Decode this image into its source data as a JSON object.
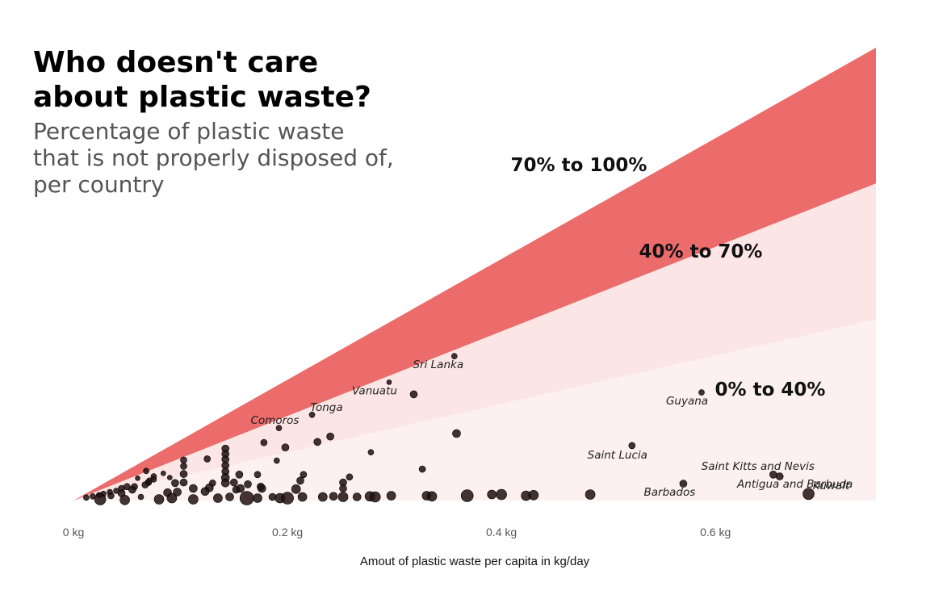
{
  "header": {
    "title_line1": "Who doesn't care",
    "title_line2": "about plastic waste?",
    "subtitle_line1": "Percentage of plastic waste",
    "subtitle_line2": "that is not properly disposed of,",
    "subtitle_line3": "per country"
  },
  "chart_data": {
    "type": "scatter",
    "xlabel": "Amout of plastic waste per capita in kg/day",
    "ylabel": "",
    "x_ticks": [
      0,
      0.2,
      0.4,
      0.6
    ],
    "x_tick_labels": [
      "0 kg",
      "0.2 kg",
      "0.4 kg",
      "0.6 kg"
    ],
    "xlim": [
      0,
      0.75
    ],
    "ylim": [
      0,
      0.75
    ],
    "grid": false,
    "bands": [
      {
        "label": "70% to 100%",
        "from": 0.7,
        "to": 1.0,
        "color": "#ec6b6b"
      },
      {
        "label": "40% to 70%",
        "from": 0.4,
        "to": 0.7,
        "color": "#fce5e5"
      },
      {
        "label": "0% to 40%",
        "from": 0.0,
        "to": 0.4,
        "color": "#fcf0f0"
      }
    ],
    "labeled_points": [
      {
        "name": "Sri Lanka",
        "x": 0.356,
        "y": 0.239,
        "size": 3.5
      },
      {
        "name": "Vanuatu",
        "x": 0.295,
        "y": 0.196,
        "size": 3
      },
      {
        "name": "Tonga",
        "x": 0.223,
        "y": 0.142,
        "size": 3.5
      },
      {
        "name": "Comoros",
        "x": 0.192,
        "y": 0.12,
        "size": 3.5
      },
      {
        "name": "Guyana",
        "x": 0.587,
        "y": 0.179,
        "size": 3.5
      },
      {
        "name": "Saint Lucia",
        "x": 0.522,
        "y": 0.091,
        "size": 4
      },
      {
        "name": "Barbados",
        "x": 0.57,
        "y": 0.028,
        "size": 4.5
      },
      {
        "name": "Saint Kitts and Nevis",
        "x": 0.654,
        "y": 0.043,
        "size": 4.5
      },
      {
        "name": "Antigua and Barbuda",
        "x": 0.66,
        "y": 0.04,
        "size": 4.5
      },
      {
        "name": "Kuwait",
        "x": 0.687,
        "y": 0.011,
        "size": 7
      }
    ],
    "points": [
      {
        "x": 0.318,
        "y": 0.176,
        "size": 4.5
      },
      {
        "x": 0.358,
        "y": 0.111,
        "size": 5
      },
      {
        "x": 0.24,
        "y": 0.106,
        "size": 4.5
      },
      {
        "x": 0.228,
        "y": 0.097,
        "size": 4.5
      },
      {
        "x": 0.178,
        "y": 0.096,
        "size": 4
      },
      {
        "x": 0.198,
        "y": 0.088,
        "size": 4.5
      },
      {
        "x": 0.278,
        "y": 0.08,
        "size": 3.5
      },
      {
        "x": 0.142,
        "y": 0.086,
        "size": 4.5
      },
      {
        "x": 0.142,
        "y": 0.077,
        "size": 4.5
      },
      {
        "x": 0.142,
        "y": 0.068,
        "size": 4.5
      },
      {
        "x": 0.142,
        "y": 0.058,
        "size": 4.5
      },
      {
        "x": 0.142,
        "y": 0.048,
        "size": 4.5
      },
      {
        "x": 0.142,
        "y": 0.038,
        "size": 5
      },
      {
        "x": 0.142,
        "y": 0.029,
        "size": 5
      },
      {
        "x": 0.125,
        "y": 0.069,
        "size": 4
      },
      {
        "x": 0.103,
        "y": 0.067,
        "size": 4
      },
      {
        "x": 0.103,
        "y": 0.057,
        "size": 4
      },
      {
        "x": 0.103,
        "y": 0.044,
        "size": 4.5
      },
      {
        "x": 0.103,
        "y": 0.03,
        "size": 4.5
      },
      {
        "x": 0.084,
        "y": 0.045,
        "size": 3
      },
      {
        "x": 0.075,
        "y": 0.04,
        "size": 3.5
      },
      {
        "x": 0.075,
        "y": 0.035,
        "size": 3.5
      },
      {
        "x": 0.07,
        "y": 0.03,
        "size": 4
      },
      {
        "x": 0.067,
        "y": 0.026,
        "size": 4
      },
      {
        "x": 0.057,
        "y": 0.023,
        "size": 4
      },
      {
        "x": 0.05,
        "y": 0.023,
        "size": 4
      },
      {
        "x": 0.045,
        "y": 0.02,
        "size": 4
      },
      {
        "x": 0.04,
        "y": 0.016,
        "size": 3.5
      },
      {
        "x": 0.034,
        "y": 0.014,
        "size": 3.5
      },
      {
        "x": 0.028,
        "y": 0.011,
        "size": 3.5
      },
      {
        "x": 0.024,
        "y": 0.009,
        "size": 3.5
      },
      {
        "x": 0.018,
        "y": 0.007,
        "size": 3.5
      },
      {
        "x": 0.012,
        "y": 0.005,
        "size": 3.5
      },
      {
        "x": 0.326,
        "y": 0.052,
        "size": 4
      },
      {
        "x": 0.19,
        "y": 0.066,
        "size": 3.5
      },
      {
        "x": 0.172,
        "y": 0.043,
        "size": 4
      },
      {
        "x": 0.215,
        "y": 0.043,
        "size": 4
      },
      {
        "x": 0.212,
        "y": 0.033,
        "size": 4.5
      },
      {
        "x": 0.155,
        "y": 0.043,
        "size": 4.5
      },
      {
        "x": 0.258,
        "y": 0.039,
        "size": 4
      },
      {
        "x": 0.09,
        "y": 0.038,
        "size": 3
      },
      {
        "x": 0.071,
        "y": 0.033,
        "size": 3.5
      },
      {
        "x": 0.068,
        "y": 0.049,
        "size": 3.5
      },
      {
        "x": 0.06,
        "y": 0.037,
        "size": 3
      },
      {
        "x": 0.095,
        "y": 0.029,
        "size": 4.5
      },
      {
        "x": 0.13,
        "y": 0.029,
        "size": 4
      },
      {
        "x": 0.15,
        "y": 0.03,
        "size": 4.5
      },
      {
        "x": 0.252,
        "y": 0.03,
        "size": 4.5
      },
      {
        "x": 0.252,
        "y": 0.02,
        "size": 4.5
      },
      {
        "x": 0.175,
        "y": 0.023,
        "size": 4.5
      },
      {
        "x": 0.163,
        "y": 0.027,
        "size": 4.5
      },
      {
        "x": 0.152,
        "y": 0.018,
        "size": 4.5
      },
      {
        "x": 0.127,
        "y": 0.021,
        "size": 5
      },
      {
        "x": 0.112,
        "y": 0.02,
        "size": 5
      },
      {
        "x": 0.088,
        "y": 0.013,
        "size": 5
      },
      {
        "x": 0.097,
        "y": 0.014,
        "size": 5
      },
      {
        "x": 0.176,
        "y": 0.02,
        "size": 5
      },
      {
        "x": 0.123,
        "y": 0.015,
        "size": 5
      },
      {
        "x": 0.045,
        "y": 0.012,
        "size": 4.5
      },
      {
        "x": 0.055,
        "y": 0.018,
        "size": 4.5
      },
      {
        "x": 0.035,
        "y": 0.008,
        "size": 4
      },
      {
        "x": 0.156,
        "y": 0.02,
        "size": 5
      },
      {
        "x": 0.208,
        "y": 0.019,
        "size": 5.5
      },
      {
        "x": 0.025,
        "y": 0.002,
        "size": 7
      },
      {
        "x": 0.048,
        "y": 0.001,
        "size": 6
      },
      {
        "x": 0.063,
        "y": 0.006,
        "size": 3.5
      },
      {
        "x": 0.08,
        "y": 0.002,
        "size": 6
      },
      {
        "x": 0.092,
        "y": 0.004,
        "size": 6
      },
      {
        "x": 0.112,
        "y": 0.002,
        "size": 6
      },
      {
        "x": 0.135,
        "y": 0.004,
        "size": 5.5
      },
      {
        "x": 0.146,
        "y": 0.006,
        "size": 5
      },
      {
        "x": 0.162,
        "y": 0.004,
        "size": 8.5
      },
      {
        "x": 0.172,
        "y": 0.004,
        "size": 5.5
      },
      {
        "x": 0.186,
        "y": 0.006,
        "size": 4.5
      },
      {
        "x": 0.193,
        "y": 0.004,
        "size": 6
      },
      {
        "x": 0.2,
        "y": 0.004,
        "size": 7.5
      },
      {
        "x": 0.214,
        "y": 0.006,
        "size": 5.5
      },
      {
        "x": 0.233,
        "y": 0.006,
        "size": 5.5
      },
      {
        "x": 0.243,
        "y": 0.007,
        "size": 5
      },
      {
        "x": 0.252,
        "y": 0.006,
        "size": 6
      },
      {
        "x": 0.265,
        "y": 0.006,
        "size": 5
      },
      {
        "x": 0.277,
        "y": 0.007,
        "size": 6
      },
      {
        "x": 0.282,
        "y": 0.006,
        "size": 6.5
      },
      {
        "x": 0.297,
        "y": 0.008,
        "size": 5.5
      },
      {
        "x": 0.33,
        "y": 0.008,
        "size": 5.5
      },
      {
        "x": 0.335,
        "y": 0.007,
        "size": 6
      },
      {
        "x": 0.368,
        "y": 0.008,
        "size": 7.5
      },
      {
        "x": 0.391,
        "y": 0.01,
        "size": 5.5
      },
      {
        "x": 0.4,
        "y": 0.01,
        "size": 6.5
      },
      {
        "x": 0.423,
        "y": 0.008,
        "size": 6
      },
      {
        "x": 0.43,
        "y": 0.009,
        "size": 6
      },
      {
        "x": 0.483,
        "y": 0.01,
        "size": 6
      }
    ]
  }
}
